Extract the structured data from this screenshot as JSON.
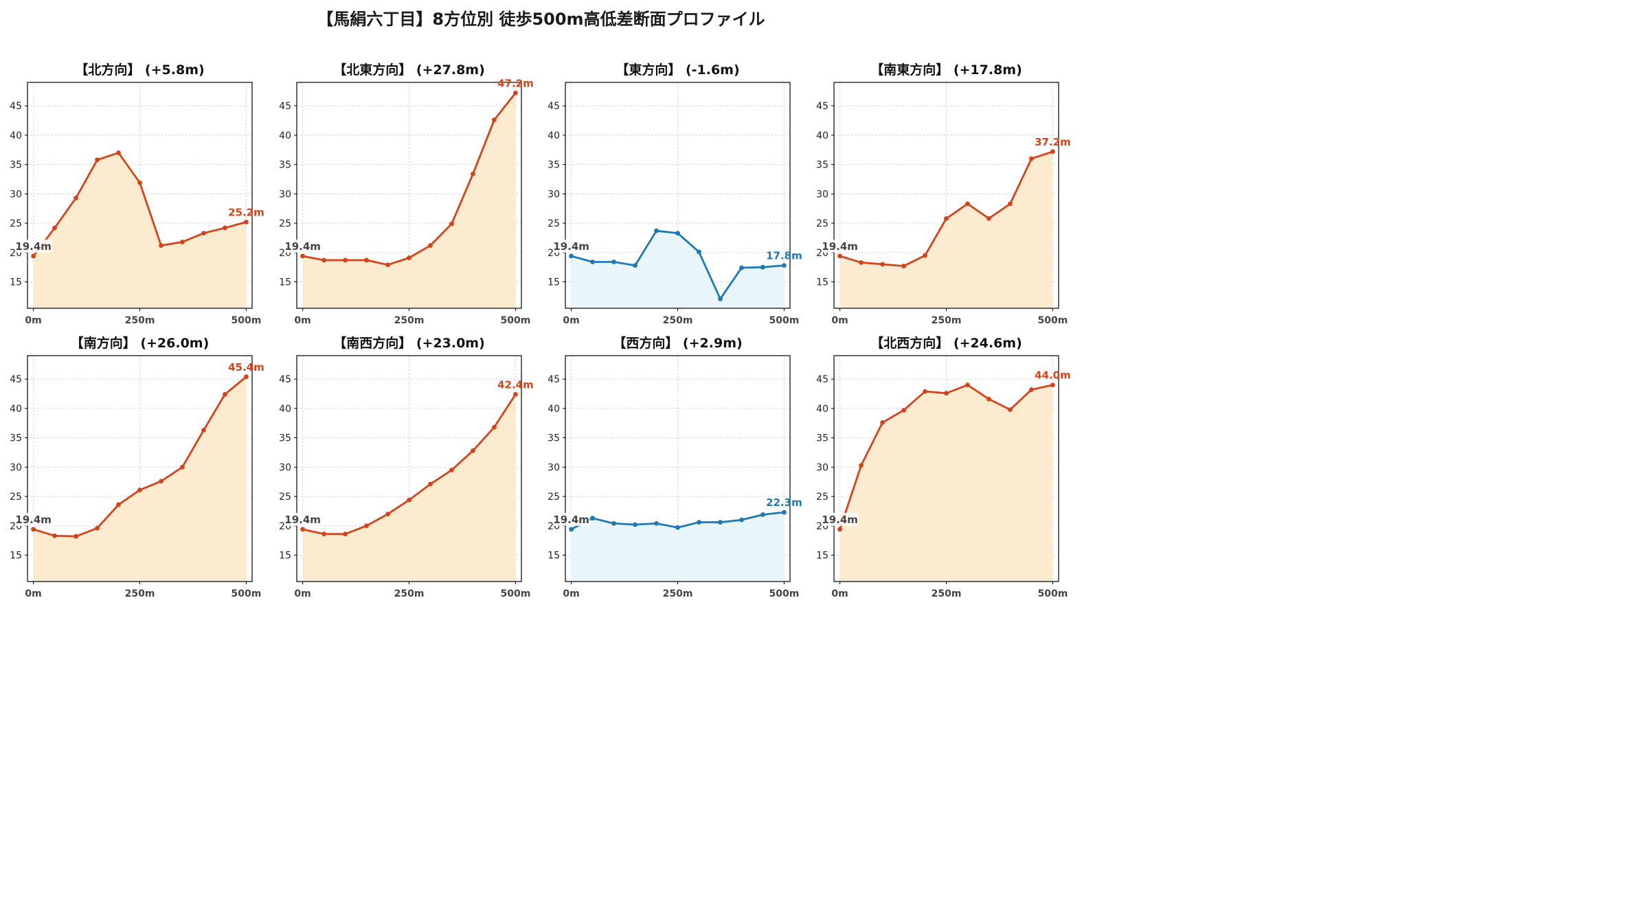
{
  "title": "【馬絹六丁目】8方位別 徒歩500m高低差断面プロファイル",
  "colors": {
    "up_line": "#d4441a",
    "up_fill": "#fdebd0",
    "down_line": "#1f77b4",
    "down_fill": "#e8f6fc",
    "start_label": "#444444",
    "grid": "#cccccc"
  },
  "chart_data": [
    {
      "type": "area",
      "title": "【北方向】 (+5.8m)",
      "trend": "up",
      "x": [
        0,
        50,
        100,
        150,
        200,
        250,
        300,
        350,
        400,
        450,
        500
      ],
      "values": [
        19.4,
        24.2,
        29.3,
        35.8,
        37.0,
        31.9,
        21.2,
        21.8,
        23.3,
        24.2,
        25.2
      ],
      "start_label": "19.4m",
      "end_label": "25.2m",
      "xticks": [
        "0m",
        "250m",
        "500m"
      ],
      "ylim": [
        10.5,
        49
      ],
      "yticks": [
        15,
        20,
        25,
        30,
        35,
        40,
        45
      ],
      "grid": true
    },
    {
      "type": "area",
      "title": "【北東方向】 (+27.8m)",
      "trend": "up",
      "x": [
        0,
        50,
        100,
        150,
        200,
        250,
        300,
        350,
        400,
        450,
        500
      ],
      "values": [
        19.4,
        18.7,
        18.7,
        18.7,
        17.9,
        19.1,
        21.2,
        24.9,
        33.4,
        42.6,
        47.2
      ],
      "start_label": "19.4m",
      "end_label": "47.2m",
      "xticks": [
        "0m",
        "250m",
        "500m"
      ],
      "ylim": [
        10.5,
        49
      ],
      "yticks": [
        15,
        20,
        25,
        30,
        35,
        40,
        45
      ],
      "grid": true
    },
    {
      "type": "area",
      "title": "【東方向】 (-1.6m)",
      "trend": "down",
      "x": [
        0,
        50,
        100,
        150,
        200,
        250,
        300,
        350,
        400,
        450,
        500
      ],
      "values": [
        19.4,
        18.4,
        18.4,
        17.8,
        23.7,
        23.3,
        20.1,
        12.1,
        17.4,
        17.5,
        17.8
      ],
      "start_label": "19.4m",
      "end_label": "17.8m",
      "xticks": [
        "0m",
        "250m",
        "500m"
      ],
      "ylim": [
        10.5,
        49
      ],
      "yticks": [
        15,
        20,
        25,
        30,
        35,
        40,
        45
      ],
      "grid": true
    },
    {
      "type": "area",
      "title": "【南東方向】 (+17.8m)",
      "trend": "up",
      "x": [
        0,
        50,
        100,
        150,
        200,
        250,
        300,
        350,
        400,
        450,
        500
      ],
      "values": [
        19.4,
        18.3,
        18.0,
        17.7,
        19.5,
        25.8,
        28.3,
        25.8,
        28.3,
        36.0,
        37.2
      ],
      "start_label": "19.4m",
      "end_label": "37.2m",
      "xticks": [
        "0m",
        "250m",
        "500m"
      ],
      "ylim": [
        10.5,
        49
      ],
      "yticks": [
        15,
        20,
        25,
        30,
        35,
        40,
        45
      ],
      "grid": true
    },
    {
      "type": "area",
      "title": "【南方向】 (+26.0m)",
      "trend": "up",
      "x": [
        0,
        50,
        100,
        150,
        200,
        250,
        300,
        350,
        400,
        450,
        500
      ],
      "values": [
        19.4,
        18.3,
        18.2,
        19.6,
        23.6,
        26.1,
        27.6,
        30.0,
        36.3,
        42.4,
        45.4
      ],
      "start_label": "19.4m",
      "end_label": "45.4m",
      "xticks": [
        "0m",
        "250m",
        "500m"
      ],
      "ylim": [
        10.5,
        49
      ],
      "yticks": [
        15,
        20,
        25,
        30,
        35,
        40,
        45
      ],
      "grid": true
    },
    {
      "type": "area",
      "title": "【南西方向】 (+23.0m)",
      "trend": "up",
      "x": [
        0,
        50,
        100,
        150,
        200,
        250,
        300,
        350,
        400,
        450,
        500
      ],
      "values": [
        19.4,
        18.6,
        18.6,
        20.0,
        22.0,
        24.4,
        27.1,
        29.5,
        32.8,
        36.8,
        42.4
      ],
      "start_label": "19.4m",
      "end_label": "42.4m",
      "xticks": [
        "0m",
        "250m",
        "500m"
      ],
      "ylim": [
        10.5,
        49
      ],
      "yticks": [
        15,
        20,
        25,
        30,
        35,
        40,
        45
      ],
      "grid": true
    },
    {
      "type": "area",
      "title": "【西方向】 (+2.9m)",
      "trend": "down",
      "x": [
        0,
        50,
        100,
        150,
        200,
        250,
        300,
        350,
        400,
        450,
        500
      ],
      "values": [
        19.4,
        21.3,
        20.4,
        20.2,
        20.4,
        19.7,
        20.6,
        20.6,
        21.0,
        21.9,
        22.3
      ],
      "start_label": "19.4m",
      "end_label": "22.3m",
      "xticks": [
        "0m",
        "250m",
        "500m"
      ],
      "ylim": [
        10.5,
        49
      ],
      "yticks": [
        15,
        20,
        25,
        30,
        35,
        40,
        45
      ],
      "grid": true
    },
    {
      "type": "area",
      "title": "【北西方向】 (+24.6m)",
      "trend": "up",
      "x": [
        0,
        50,
        100,
        150,
        200,
        250,
        300,
        350,
        400,
        450,
        500
      ],
      "values": [
        19.4,
        30.3,
        37.6,
        39.7,
        42.9,
        42.6,
        44.0,
        41.6,
        39.8,
        43.2,
        44.0
      ],
      "start_label": "19.4m",
      "end_label": "44.0m",
      "xticks": [
        "0m",
        "250m",
        "500m"
      ],
      "ylim": [
        10.5,
        49
      ],
      "yticks": [
        15,
        20,
        25,
        30,
        35,
        40,
        45
      ],
      "grid": true
    }
  ]
}
